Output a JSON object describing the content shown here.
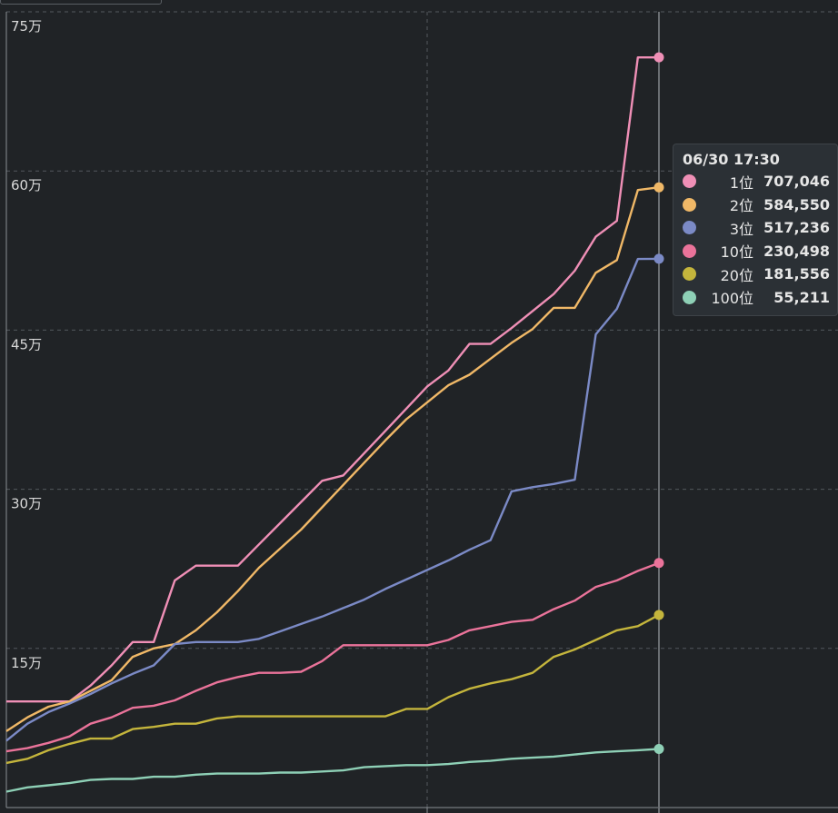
{
  "chart_data": {
    "type": "line",
    "ylim": [
      0,
      750000
    ],
    "y_ticks": [
      {
        "value": 150000,
        "label": "15万"
      },
      {
        "value": 300000,
        "label": "30万"
      },
      {
        "value": 450000,
        "label": "45万"
      },
      {
        "value": 600000,
        "label": "60万"
      },
      {
        "value": 750000,
        "label": "75万"
      }
    ],
    "grid": true,
    "x_count": 32,
    "series": [
      {
        "name": "1位",
        "color": "#ef8fb6",
        "values": [
          100000,
          100000,
          100000,
          100000,
          115000,
          134000,
          156000,
          156000,
          214000,
          228000,
          228000,
          228000,
          248000,
          268000,
          288000,
          308000,
          313000,
          334000,
          355000,
          376000,
          397000,
          412000,
          437000,
          437000,
          452000,
          468000,
          484000,
          506000,
          538000,
          553000,
          707000,
          707046
        ]
      },
      {
        "name": "2位",
        "color": "#f0b867",
        "values": [
          72000,
          85000,
          95000,
          100000,
          110000,
          120000,
          142000,
          150000,
          154000,
          167000,
          184000,
          204000,
          226000,
          244000,
          262000,
          283000,
          304000,
          325000,
          346000,
          366000,
          382000,
          398000,
          408000,
          423000,
          438000,
          451000,
          471000,
          471000,
          504000,
          516000,
          582000,
          584550
        ]
      },
      {
        "name": "3位",
        "color": "#7b8ac6",
        "values": [
          63000,
          79000,
          90000,
          98000,
          107000,
          117000,
          126000,
          134000,
          154000,
          156000,
          156000,
          156000,
          159000,
          166000,
          173000,
          180000,
          188000,
          196000,
          206000,
          215000,
          224000,
          233000,
          243000,
          252000,
          298000,
          302000,
          305000,
          309000,
          446000,
          470000,
          517000,
          517236
        ]
      },
      {
        "name": "10位",
        "color": "#ea739a",
        "values": [
          53000,
          56000,
          61000,
          67000,
          79000,
          85000,
          94000,
          96000,
          101000,
          110000,
          118000,
          123000,
          127000,
          127000,
          128000,
          138000,
          153000,
          153000,
          153000,
          153000,
          153000,
          158000,
          167000,
          171000,
          175000,
          177000,
          187000,
          195000,
          208000,
          214000,
          223000,
          230498
        ]
      },
      {
        "name": "20位",
        "color": "#c4b53c",
        "values": [
          42000,
          46000,
          54000,
          60000,
          65000,
          65000,
          74000,
          76000,
          79000,
          79000,
          84000,
          86000,
          86000,
          86000,
          86000,
          86000,
          86000,
          86000,
          86000,
          93000,
          93000,
          104000,
          112000,
          117000,
          121000,
          127000,
          142000,
          149000,
          158000,
          167000,
          171000,
          181556
        ]
      },
      {
        "name": "100位",
        "color": "#8ed0b6",
        "values": [
          15000,
          19000,
          21000,
          23000,
          26000,
          27000,
          27000,
          29000,
          29000,
          31000,
          32000,
          32000,
          32000,
          33000,
          33000,
          34000,
          35000,
          38000,
          39000,
          40000,
          40000,
          41000,
          43000,
          44000,
          46000,
          47000,
          48000,
          50000,
          52000,
          53000,
          54000,
          55211
        ]
      }
    ]
  },
  "tooltip": {
    "title": "06/30 17:30",
    "rows": [
      {
        "rank": "1位",
        "value": "707,046",
        "color": "#ef8fb6"
      },
      {
        "rank": "2位",
        "value": "584,550",
        "color": "#f0b867"
      },
      {
        "rank": "3位",
        "value": "517,236",
        "color": "#7b8ac6"
      },
      {
        "rank": "10位",
        "value": "230,498",
        "color": "#ea739a"
      },
      {
        "rank": "20位",
        "value": "181,556",
        "color": "#c4b53c"
      },
      {
        "rank": "100位",
        "value": "55,211",
        "color": "#8ed0b6"
      }
    ]
  }
}
